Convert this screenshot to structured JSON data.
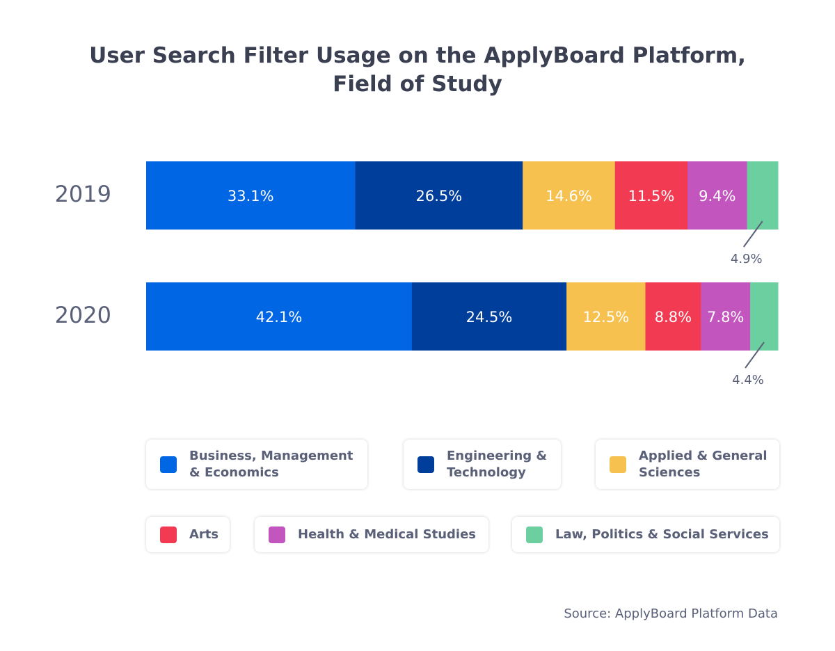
{
  "chart_data": {
    "type": "bar",
    "orientation": "horizontal",
    "stacked": true,
    "title": "User Search Filter Usage on the ApplyBoard Platform,",
    "title_line2": "Field of Study",
    "categories": [
      "2019",
      "2020"
    ],
    "series": [
      {
        "name": "Business, Management & Economics",
        "color": "#0066E3",
        "values": [
          33.1,
          42.1
        ]
      },
      {
        "name": "Engineering & Technology",
        "color": "#003E9C",
        "values": [
          26.5,
          24.5
        ]
      },
      {
        "name": "Applied & General Sciences",
        "color": "#F6C14F",
        "values": [
          14.6,
          12.5
        ]
      },
      {
        "name": "Arts",
        "color": "#F23A53",
        "values": [
          11.5,
          8.8
        ]
      },
      {
        "name": "Health & Medical Studies",
        "color": "#C355BE",
        "values": [
          9.4,
          7.8
        ]
      },
      {
        "name": "Law, Politics & Social Services",
        "color": "#6BCF9F",
        "values": [
          4.9,
          4.4
        ]
      }
    ],
    "data_labels": [
      [
        "33.1%",
        "26.5%",
        "14.6%",
        "11.5%",
        "9.4%",
        "4.9%"
      ],
      [
        "42.1%",
        "24.5%",
        "12.5%",
        "8.8%",
        "7.8%",
        "4.4%"
      ]
    ],
    "legend_position": "bottom",
    "grid": false,
    "source": "Source: ApplyBoard Platform Data"
  },
  "legend": {
    "items": [
      {
        "line1": "Business, Management",
        "line2": "& Economics"
      },
      {
        "line1": "Engineering &",
        "line2": "Technology"
      },
      {
        "line1": "Applied & General",
        "line2": "Sciences"
      },
      {
        "line1": "Arts",
        "line2": ""
      },
      {
        "line1": "Health & Medical Studies",
        "line2": ""
      },
      {
        "line1": "Law, Politics & Social Services",
        "line2": ""
      }
    ]
  }
}
